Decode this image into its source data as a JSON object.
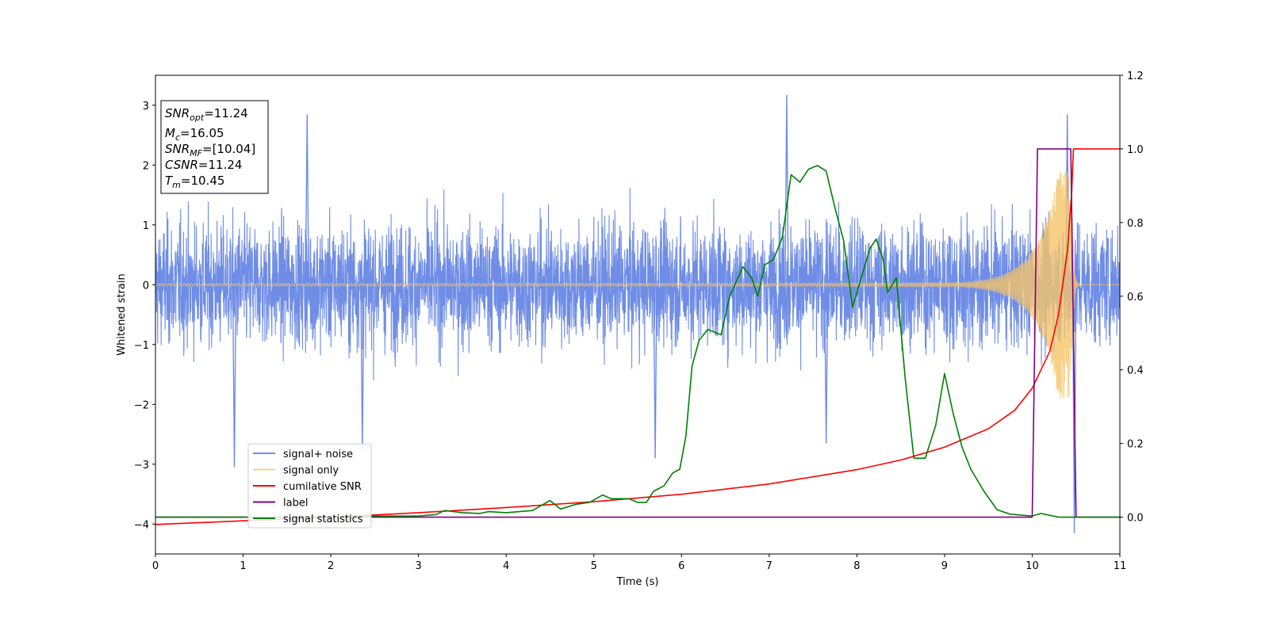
{
  "chart_data": {
    "type": "line",
    "title": "",
    "xlabel": "Time (s)",
    "ylabel": "Whitened strain",
    "y2label": "",
    "xlim": [
      0,
      11
    ],
    "ylim": [
      -4.5,
      3.5
    ],
    "y2lim": [
      -0.1,
      1.2
    ],
    "x_ticks": [
      0,
      1,
      2,
      3,
      4,
      5,
      6,
      7,
      8,
      9,
      10,
      11
    ],
    "y_ticks": [
      -4,
      -3,
      -2,
      -1,
      0,
      1,
      2,
      3
    ],
    "y2_ticks": [
      0.0,
      0.2,
      0.4,
      0.6,
      0.8,
      1.0,
      1.2
    ],
    "grid": false,
    "legend_position": "lower-left",
    "stats_box": {
      "snr_opt": {
        "sym": "SNR",
        "sub": "opt",
        "val": "=11.24"
      },
      "mc": {
        "sym": "M",
        "sub": "c",
        "val": "=16.05"
      },
      "snr_mf": {
        "sym": "SNR",
        "sub": "MF",
        "val": "=[10.04]"
      },
      "csnr": {
        "sym": "CSNR",
        "val": "=11.24"
      },
      "tm": {
        "sym": "T",
        "sub": "m",
        "val": "=10.45"
      }
    },
    "series": [
      {
        "name": "signal+ noise",
        "axis": "left",
        "color": "#6f8de6",
        "kind": "noise",
        "sigma": 0.75,
        "t_range": [
          0,
          11
        ],
        "peaks": [
          [
            0.9,
            -3.05
          ],
          [
            1.73,
            2.85
          ],
          [
            2.36,
            -2.75
          ],
          [
            5.7,
            -2.9
          ],
          [
            7.2,
            3.17
          ],
          [
            7.65,
            -2.65
          ],
          [
            10.48,
            -4.15
          ],
          [
            10.4,
            2.85
          ]
        ]
      },
      {
        "name": "signal only",
        "axis": "left",
        "color": "#f5c46a",
        "kind": "chirp",
        "t_merge": 10.45,
        "amplitude_final": 1.9
      },
      {
        "name": "cumilative SNR",
        "axis": "right",
        "color": "#ff0000",
        "points": [
          [
            0,
            -0.02
          ],
          [
            1,
            -0.01
          ],
          [
            2,
            0.0
          ],
          [
            3,
            0.012
          ],
          [
            4,
            0.026
          ],
          [
            5,
            0.042
          ],
          [
            6,
            0.062
          ],
          [
            7,
            0.09
          ],
          [
            8,
            0.129
          ],
          [
            8.5,
            0.155
          ],
          [
            9,
            0.19
          ],
          [
            9.5,
            0.24
          ],
          [
            9.8,
            0.29
          ],
          [
            10.0,
            0.35
          ],
          [
            10.2,
            0.45
          ],
          [
            10.3,
            0.55
          ],
          [
            10.4,
            0.72
          ],
          [
            10.45,
            0.88
          ],
          [
            10.47,
            1.0
          ],
          [
            11,
            1.0
          ]
        ]
      },
      {
        "name": "label",
        "axis": "right",
        "color": "#800080",
        "points": [
          [
            0,
            0.0
          ],
          [
            10.0,
            0.0
          ],
          [
            10.06,
            1.0
          ],
          [
            10.44,
            1.0
          ],
          [
            10.5,
            0.0
          ],
          [
            11,
            0.0
          ]
        ]
      },
      {
        "name": "signal statistics",
        "axis": "right",
        "color": "#008000",
        "points": [
          [
            0,
            0.0
          ],
          [
            1,
            0.0
          ],
          [
            2,
            0.0
          ],
          [
            2.5,
            0.003
          ],
          [
            3,
            0.003
          ],
          [
            3.2,
            0.007
          ],
          [
            3.3,
            0.018
          ],
          [
            3.5,
            0.012
          ],
          [
            3.7,
            0.01
          ],
          [
            3.8,
            0.015
          ],
          [
            4.0,
            0.012
          ],
          [
            4.3,
            0.018
          ],
          [
            4.5,
            0.045
          ],
          [
            4.62,
            0.022
          ],
          [
            4.8,
            0.035
          ],
          [
            4.95,
            0.04
          ],
          [
            5.1,
            0.06
          ],
          [
            5.2,
            0.05
          ],
          [
            5.4,
            0.05
          ],
          [
            5.5,
            0.04
          ],
          [
            5.6,
            0.04
          ],
          [
            5.68,
            0.07
          ],
          [
            5.8,
            0.085
          ],
          [
            5.9,
            0.12
          ],
          [
            5.98,
            0.13
          ],
          [
            6.05,
            0.22
          ],
          [
            6.12,
            0.41
          ],
          [
            6.2,
            0.48
          ],
          [
            6.3,
            0.51
          ],
          [
            6.45,
            0.495
          ],
          [
            6.55,
            0.6
          ],
          [
            6.7,
            0.68
          ],
          [
            6.8,
            0.65
          ],
          [
            6.87,
            0.6
          ],
          [
            6.95,
            0.685
          ],
          [
            7.05,
            0.7
          ],
          [
            7.15,
            0.76
          ],
          [
            7.25,
            0.93
          ],
          [
            7.35,
            0.91
          ],
          [
            7.45,
            0.945
          ],
          [
            7.55,
            0.955
          ],
          [
            7.65,
            0.94
          ],
          [
            7.75,
            0.84
          ],
          [
            7.85,
            0.75
          ],
          [
            7.95,
            0.57
          ],
          [
            8.05,
            0.65
          ],
          [
            8.15,
            0.73
          ],
          [
            8.22,
            0.755
          ],
          [
            8.3,
            0.7
          ],
          [
            8.35,
            0.61
          ],
          [
            8.45,
            0.65
          ],
          [
            8.55,
            0.38
          ],
          [
            8.65,
            0.16
          ],
          [
            8.78,
            0.16
          ],
          [
            8.9,
            0.25
          ],
          [
            9.0,
            0.39
          ],
          [
            9.1,
            0.28
          ],
          [
            9.2,
            0.19
          ],
          [
            9.3,
            0.13
          ],
          [
            9.45,
            0.07
          ],
          [
            9.6,
            0.02
          ],
          [
            9.75,
            0.008
          ],
          [
            10.0,
            0.003
          ],
          [
            10.1,
            0.01
          ],
          [
            10.3,
            0.0
          ],
          [
            11,
            0.0
          ]
        ]
      }
    ]
  }
}
